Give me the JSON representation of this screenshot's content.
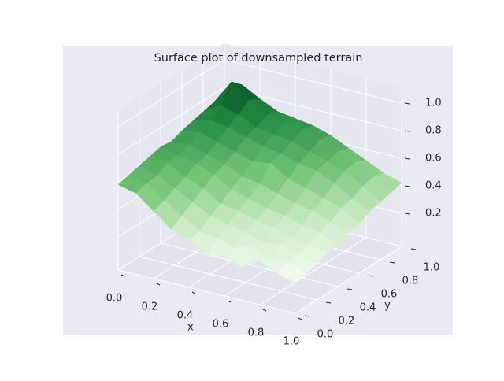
{
  "chart_data": {
    "type": "surface",
    "title": "Surface plot of downsampled terrain",
    "x_label": "x",
    "y_label": "y",
    "x": [
      0,
      0.1,
      0.2,
      0.3,
      0.4,
      0.5,
      0.6,
      0.7,
      0.8,
      0.9,
      1
    ],
    "y": [
      0,
      0.1,
      0.2,
      0.3,
      0.4,
      0.5,
      0.6,
      0.7,
      0.8,
      0.9,
      1
    ],
    "z": [
      [
        0.58,
        0.55,
        0.45,
        0.35,
        0.3,
        0.22,
        0.25,
        0.2,
        0.28,
        0.22,
        0.18
      ],
      [
        0.6,
        0.57,
        0.48,
        0.4,
        0.32,
        0.3,
        0.26,
        0.3,
        0.24,
        0.25,
        0.2
      ],
      [
        0.62,
        0.58,
        0.52,
        0.45,
        0.38,
        0.35,
        0.32,
        0.28,
        0.3,
        0.26,
        0.22
      ],
      [
        0.64,
        0.62,
        0.55,
        0.5,
        0.42,
        0.4,
        0.36,
        0.34,
        0.3,
        0.28,
        0.25
      ],
      [
        0.66,
        0.63,
        0.6,
        0.55,
        0.48,
        0.44,
        0.4,
        0.38,
        0.34,
        0.32,
        0.26
      ],
      [
        0.65,
        0.66,
        0.62,
        0.58,
        0.52,
        0.5,
        0.46,
        0.42,
        0.4,
        0.35,
        0.3
      ],
      [
        0.68,
        0.7,
        0.66,
        0.62,
        0.58,
        0.6,
        0.52,
        0.48,
        0.44,
        0.4,
        0.32
      ],
      [
        0.7,
        0.74,
        0.72,
        0.68,
        0.64,
        0.62,
        0.58,
        0.56,
        0.5,
        0.42,
        0.36
      ],
      [
        0.72,
        0.8,
        0.76,
        0.7,
        0.68,
        0.66,
        0.62,
        0.58,
        0.54,
        0.46,
        0.38
      ],
      [
        0.74,
        0.92,
        0.82,
        0.74,
        0.72,
        0.7,
        0.66,
        0.6,
        0.56,
        0.48,
        0.4
      ],
      [
        0.7,
        0.85,
        0.78,
        0.72,
        0.7,
        0.68,
        0.64,
        0.58,
        0.52,
        0.46,
        0.42
      ]
    ],
    "xlim": [
      0,
      1
    ],
    "ylim": [
      0,
      1
    ],
    "zlim": [
      -0.04,
      1.12
    ],
    "xticks": [
      {
        "value": 0,
        "label": "0.0"
      },
      0.2,
      0.4,
      0.6,
      0.8,
      {
        "value": 1,
        "label": "1.0"
      }
    ],
    "yticks": [
      {
        "value": 0,
        "label": "0.0"
      },
      0.2,
      0.4,
      0.6,
      0.8,
      {
        "value": 1,
        "label": "1.0"
      }
    ],
    "zticks": [
      0.2,
      0.4,
      0.6,
      0.8,
      {
        "value": 1,
        "label": "1.0"
      }
    ],
    "colormap": [
      "#f7fcf5",
      "#c7e9c0",
      "#74c476",
      "#238b45",
      "#00441b"
    ],
    "grid": true
  }
}
